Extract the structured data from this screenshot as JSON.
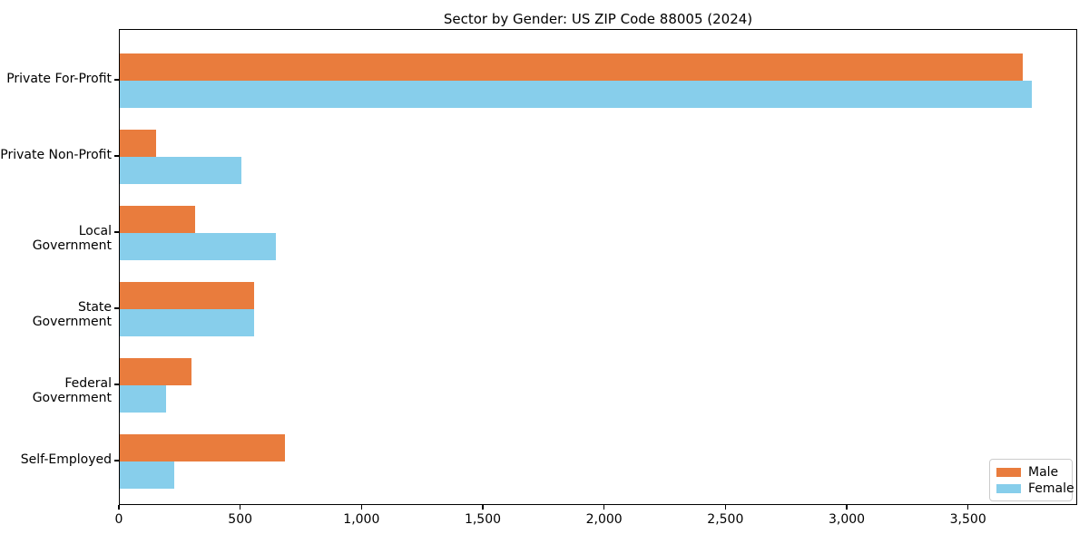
{
  "title": "Sector by Gender: US ZIP Code 88005 (2024)",
  "colors": {
    "male": "#E97C3D",
    "female": "#87CEEB",
    "spine": "#000000",
    "background": "#FFFFFF",
    "legend_border": "#CCCCCC"
  },
  "legend": {
    "items": [
      {
        "label": "Male",
        "color": "#E97C3D"
      },
      {
        "label": "Female",
        "color": "#87CEEB"
      }
    ]
  },
  "x_axis": {
    "ticks": [
      {
        "value": 0,
        "label": "0"
      },
      {
        "value": 500,
        "label": "500"
      },
      {
        "value": 1000,
        "label": "1,000"
      },
      {
        "value": 1500,
        "label": "1,500"
      },
      {
        "value": 2000,
        "label": "2,000"
      },
      {
        "value": 2500,
        "label": "2,500"
      },
      {
        "value": 3000,
        "label": "3,000"
      },
      {
        "value": 3500,
        "label": "3,500"
      }
    ],
    "max": 3950
  },
  "chart_data": {
    "type": "bar",
    "orientation": "horizontal",
    "title": "Sector by Gender: US ZIP Code 88005 (2024)",
    "categories": [
      "Private For-Profit",
      "Private Non-Profit",
      "Local Government",
      "State Government",
      "Federal Government",
      "Self-Employed"
    ],
    "series": [
      {
        "name": "Male",
        "color": "#E97C3D",
        "values": [
          3720,
          150,
          310,
          555,
          295,
          680
        ]
      },
      {
        "name": "Female",
        "color": "#87CEEB",
        "values": [
          3760,
          500,
          645,
          555,
          190,
          225
        ]
      }
    ],
    "xlabel": "",
    "ylabel": "",
    "xlim": [
      0,
      3950
    ],
    "grid": false,
    "legend_position": "lower right"
  }
}
